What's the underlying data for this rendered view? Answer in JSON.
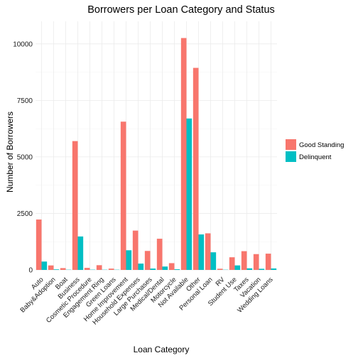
{
  "chart_data": {
    "type": "bar",
    "title": "Borrowers per Loan Category and Status",
    "xlabel": "Loan Category",
    "ylabel": "Number of Borrowers",
    "ylim": [
      0,
      11000
    ],
    "yticks": [
      0,
      2500,
      5000,
      7500,
      10000
    ],
    "grid": true,
    "legend_position": "right",
    "categories": [
      "Auto",
      "Baby&Adoption",
      "Boat",
      "Business",
      "Cosmetic Procedure",
      "Engagement Ring",
      "Green Loans",
      "Home Improvement",
      "Household Expenses",
      "Large Purchases",
      "Medical/Dental",
      "Motorcycle",
      "Not Available",
      "Other",
      "Personal Loan",
      "RV",
      "Student Use",
      "Taxes",
      "Vacation",
      "Wedding Loans"
    ],
    "series": [
      {
        "name": "Good Standing",
        "color": "#F8766D",
        "values": [
          2230,
          199,
          80,
          5700,
          90,
          210,
          58,
          6560,
          1740,
          840,
          1380,
          300,
          10260,
          8940,
          1620,
          52,
          560,
          830,
          700,
          720
        ]
      },
      {
        "name": "Delinquent",
        "color": "#00BFC4",
        "values": [
          370,
          25,
          10,
          1480,
          12,
          10,
          10,
          870,
          280,
          60,
          150,
          30,
          6700,
          1570,
          780,
          10,
          200,
          70,
          50,
          65
        ]
      }
    ]
  }
}
